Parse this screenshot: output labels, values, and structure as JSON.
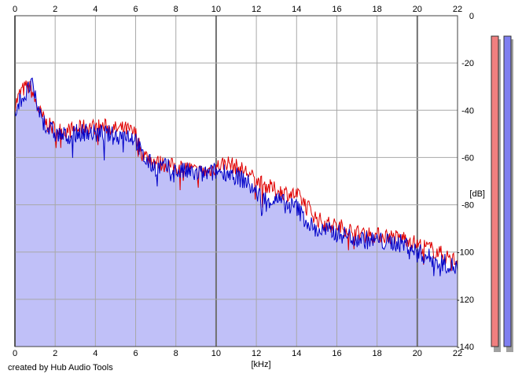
{
  "credit": "created by Hub Audio Tools",
  "chart_data": {
    "type": "line",
    "xlabel": "[kHz]",
    "ylabel": "[dB]",
    "xlim": [
      0,
      22
    ],
    "ylim": [
      -140,
      0
    ],
    "x_ticks": [
      "0",
      "2",
      "4",
      "6",
      "8",
      "10",
      "12",
      "14",
      "16",
      "18",
      "20",
      "22"
    ],
    "y_ticks": [
      "0",
      "-20",
      "-40",
      "-60",
      "-80",
      "-100",
      "-120",
      "-140"
    ],
    "grid": true,
    "x": [
      0,
      0.3,
      0.6,
      0.8,
      1.0,
      1.3,
      1.6,
      2.0,
      2.5,
      3.0,
      3.5,
      4.0,
      4.5,
      5.0,
      5.5,
      6.0,
      6.3,
      6.6,
      7.0,
      7.5,
      8.0,
      8.5,
      9.0,
      9.5,
      10.0,
      10.5,
      11.0,
      11.5,
      12.0,
      12.5,
      13.0,
      13.5,
      14.0,
      14.5,
      15.0,
      15.5,
      16.0,
      16.5,
      17.0,
      17.5,
      18.0,
      18.5,
      19.0,
      19.5,
      20.0,
      20.5,
      21.0,
      21.5,
      22.0
    ],
    "series": [
      {
        "color": "#e00000",
        "values": [
          -38,
          -32,
          -30,
          -31,
          -36,
          -42,
          -46,
          -48,
          -49,
          -48,
          -47,
          -47,
          -47,
          -48,
          -48,
          -50,
          -58,
          -60,
          -62,
          -63,
          -64,
          -64,
          -66,
          -66,
          -64,
          -62,
          -64,
          -66,
          -70,
          -72,
          -74,
          -75,
          -76,
          -80,
          -86,
          -88,
          -89,
          -90,
          -92,
          -92,
          -93,
          -93,
          -94,
          -94,
          -97,
          -98,
          -100,
          -102,
          -104
        ]
      },
      {
        "color": "#0000c8",
        "values": [
          -40,
          -35,
          -33,
          -28,
          -35,
          -43,
          -47,
          -50,
          -51,
          -50,
          -49,
          -50,
          -50,
          -51,
          -50,
          -52,
          -59,
          -62,
          -64,
          -64,
          -66,
          -66,
          -67,
          -67,
          -66,
          -66,
          -68,
          -70,
          -75,
          -78,
          -78,
          -80,
          -81,
          -87,
          -91,
          -91,
          -92,
          -93,
          -94,
          -95,
          -95,
          -96,
          -96,
          -97,
          -100,
          -102,
          -104,
          -105,
          -107
        ]
      }
    ],
    "fill_color": "#c0c0f8",
    "level_meters": [
      {
        "color": "#f07f7f"
      },
      {
        "color": "#7f7ff0"
      }
    ]
  }
}
